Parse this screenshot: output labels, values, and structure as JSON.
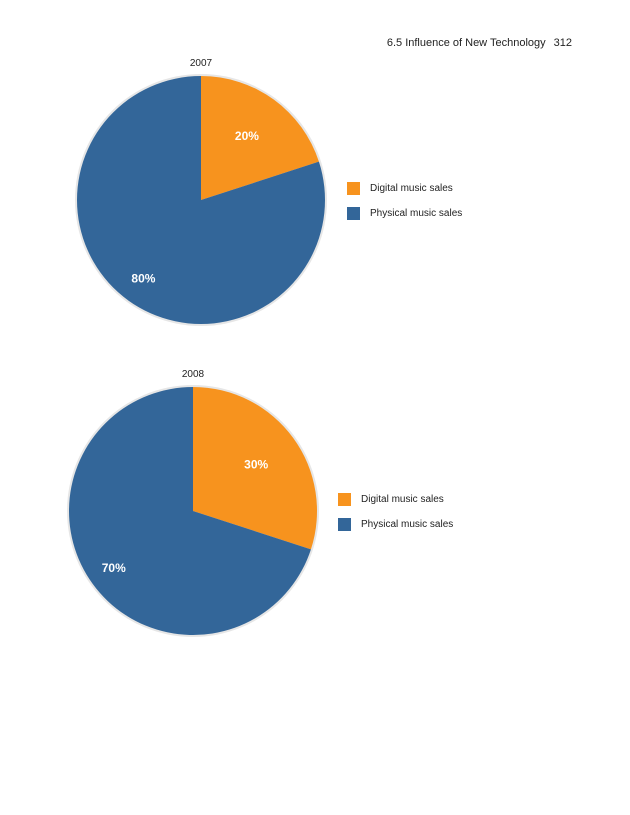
{
  "header": {
    "section": "6.5 Influence of New Technology",
    "page_number": "312"
  },
  "colors": {
    "digital": "#f7931e",
    "physical": "#336699"
  },
  "chart_data": [
    {
      "type": "pie",
      "title": "2007",
      "categories": [
        "Digital music sales",
        "Physical music sales"
      ],
      "values": [
        20,
        80
      ],
      "labels": [
        "20%",
        "80%"
      ],
      "legend": [
        "Digital music sales",
        "Physical music sales"
      ],
      "legend_position": "right"
    },
    {
      "type": "pie",
      "title": "2008",
      "categories": [
        "Digital music sales",
        "Physical music sales"
      ],
      "values": [
        30,
        70
      ],
      "labels": [
        "30%",
        "70%"
      ],
      "legend": [
        "Digital music sales",
        "Physical music sales"
      ],
      "legend_position": "right"
    }
  ]
}
